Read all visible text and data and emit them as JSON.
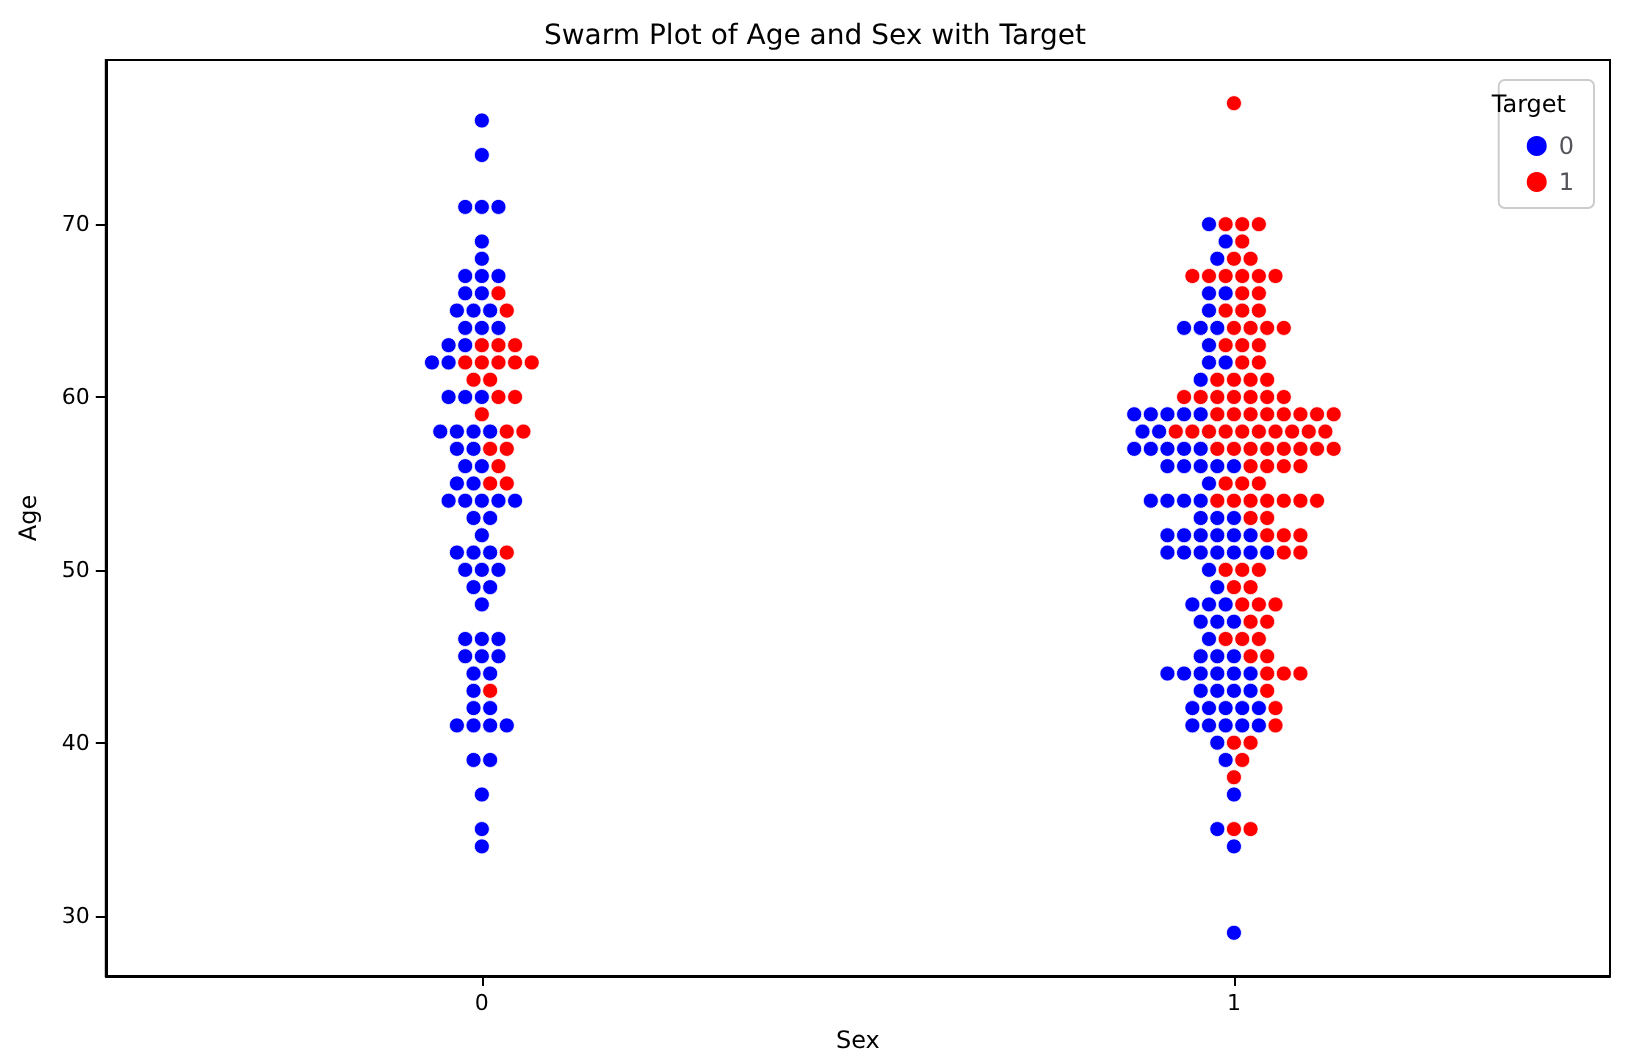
{
  "chart_data": {
    "type": "scatter",
    "title": "Swarm Plot of Age and Sex with Target",
    "xlabel": "Sex",
    "ylabel": "Age",
    "legend_title": "Target",
    "legend": "top right",
    "grid": false,
    "marker": "circle",
    "categories": [
      "0",
      "1"
    ],
    "ylim": [
      26.5,
      79.5
    ],
    "yticks": [
      30,
      40,
      50,
      60,
      70
    ],
    "series": [
      {
        "name": "0",
        "color": "#0000ff",
        "x": [
          "0",
          "0",
          "0",
          "0",
          "0",
          "0",
          "0",
          "0",
          "0",
          "0",
          "0",
          "0",
          "0",
          "0",
          "0",
          "0",
          "0",
          "0",
          "0",
          "0",
          "0",
          "0",
          "0",
          "0",
          "0",
          "0",
          "0",
          "0",
          "0",
          "0",
          "0",
          "0",
          "0",
          "0",
          "0",
          "0",
          "0",
          "0",
          "0",
          "0",
          "0",
          "0",
          "0",
          "0",
          "0",
          "0",
          "0",
          "0",
          "0",
          "0",
          "0",
          "0",
          "0",
          "0",
          "0",
          "0",
          "0",
          "0",
          "0",
          "0",
          "0",
          "0",
          "0",
          "0",
          "0",
          "0",
          "0",
          "0",
          "0",
          "0",
          "0",
          "0",
          "1",
          "1",
          "1",
          "1",
          "1",
          "1",
          "1",
          "1",
          "1",
          "1",
          "1",
          "1",
          "1",
          "1",
          "1",
          "1",
          "1",
          "1",
          "1",
          "1",
          "1",
          "1",
          "1",
          "1",
          "1",
          "1",
          "1",
          "1",
          "1",
          "1",
          "1",
          "1",
          "1",
          "1",
          "1",
          "1",
          "1",
          "1",
          "1",
          "1",
          "1",
          "1",
          "1",
          "1",
          "1",
          "1",
          "1",
          "1",
          "1",
          "1",
          "1",
          "1",
          "1",
          "1",
          "1",
          "1",
          "1",
          "1",
          "1",
          "1",
          "1",
          "1",
          "1",
          "1",
          "1",
          "1",
          "1",
          "1",
          "1",
          "1",
          "1",
          "1",
          "1",
          "1",
          "1",
          "1",
          "1",
          "1",
          "1",
          "1",
          "1",
          "1",
          "1",
          "1",
          "1",
          "1",
          "1",
          "1",
          "1"
        ],
        "values": [
          76,
          74,
          71,
          71,
          71,
          69,
          68,
          67,
          67,
          67,
          66,
          66,
          65,
          65,
          65,
          64,
          64,
          64,
          63,
          63,
          62,
          62,
          60,
          60,
          60,
          58,
          58,
          58,
          58,
          57,
          57,
          56,
          56,
          55,
          55,
          54,
          54,
          54,
          54,
          54,
          53,
          53,
          52,
          51,
          51,
          51,
          50,
          50,
          50,
          49,
          49,
          48,
          46,
          46,
          46,
          45,
          45,
          45,
          44,
          44,
          43,
          42,
          42,
          41,
          41,
          41,
          41,
          39,
          39,
          37,
          35,
          34,
          70,
          69,
          68,
          66,
          66,
          65,
          64,
          64,
          64,
          63,
          62,
          62,
          61,
          59,
          59,
          59,
          59,
          59,
          58,
          58,
          57,
          57,
          57,
          57,
          57,
          56,
          56,
          56,
          56,
          56,
          55,
          54,
          54,
          54,
          54,
          53,
          53,
          53,
          52,
          52,
          52,
          52,
          52,
          52,
          51,
          51,
          51,
          51,
          51,
          51,
          51,
          50,
          49,
          48,
          48,
          48,
          47,
          47,
          47,
          46,
          45,
          45,
          45,
          44,
          44,
          44,
          44,
          44,
          44,
          43,
          43,
          43,
          43,
          42,
          42,
          42,
          42,
          42,
          41,
          41,
          41,
          41,
          41,
          40,
          39,
          37,
          35,
          34,
          29
        ]
      },
      {
        "name": "1",
        "color": "#ff0000",
        "x": [
          "0",
          "0",
          "0",
          "0",
          "0",
          "0",
          "0",
          "0",
          "0",
          "0",
          "0",
          "0",
          "0",
          "0",
          "0",
          "0",
          "0",
          "0",
          "0",
          "0",
          "0",
          "0",
          "0",
          "0",
          "1",
          "1",
          "1",
          "1",
          "1",
          "1",
          "1",
          "1",
          "1",
          "1",
          "1",
          "1",
          "1",
          "1",
          "1",
          "1",
          "1",
          "1",
          "1",
          "1",
          "1",
          "1",
          "1",
          "1",
          "1",
          "1",
          "1",
          "1",
          "1",
          "1",
          "1",
          "1",
          "1",
          "1",
          "1",
          "1",
          "1",
          "1",
          "1",
          "1",
          "1",
          "1",
          "1",
          "1",
          "1",
          "1",
          "1",
          "1",
          "1",
          "1",
          "1",
          "1",
          "1",
          "1",
          "1",
          "1",
          "1",
          "1",
          "1",
          "1",
          "1",
          "1",
          "1",
          "1",
          "1",
          "1",
          "1",
          "1",
          "1",
          "1",
          "1",
          "1",
          "1",
          "1",
          "1",
          "1",
          "1",
          "1",
          "1",
          "1",
          "1",
          "1",
          "1",
          "1",
          "1",
          "1",
          "1",
          "1",
          "1",
          "1",
          "1",
          "1",
          "1",
          "1",
          "1",
          "1",
          "1",
          "1",
          "1",
          "1",
          "1",
          "1",
          "1",
          "1",
          "1",
          "1",
          "1",
          "1",
          "1",
          "1",
          "1",
          "1"
        ],
        "values": [
          66,
          65,
          63,
          63,
          63,
          62,
          62,
          62,
          62,
          62,
          61,
          61,
          60,
          60,
          59,
          58,
          58,
          57,
          57,
          56,
          55,
          55,
          51,
          43,
          77,
          70,
          70,
          70,
          69,
          68,
          68,
          67,
          67,
          67,
          67,
          67,
          67,
          66,
          66,
          65,
          65,
          65,
          64,
          64,
          64,
          64,
          63,
          63,
          63,
          62,
          62,
          61,
          61,
          61,
          61,
          60,
          60,
          60,
          60,
          60,
          60,
          60,
          59,
          59,
          59,
          59,
          59,
          59,
          59,
          59,
          58,
          58,
          58,
          58,
          58,
          58,
          58,
          58,
          58,
          58,
          57,
          57,
          57,
          57,
          57,
          57,
          57,
          57,
          56,
          56,
          56,
          56,
          55,
          55,
          55,
          54,
          54,
          54,
          54,
          54,
          54,
          54,
          53,
          53,
          52,
          52,
          52,
          51,
          51,
          50,
          50,
          50,
          49,
          49,
          48,
          48,
          48,
          47,
          47,
          46,
          46,
          46,
          45,
          45,
          44,
          44,
          44,
          43,
          42,
          41,
          40,
          40,
          39,
          38,
          35,
          35
        ]
      }
    ]
  }
}
